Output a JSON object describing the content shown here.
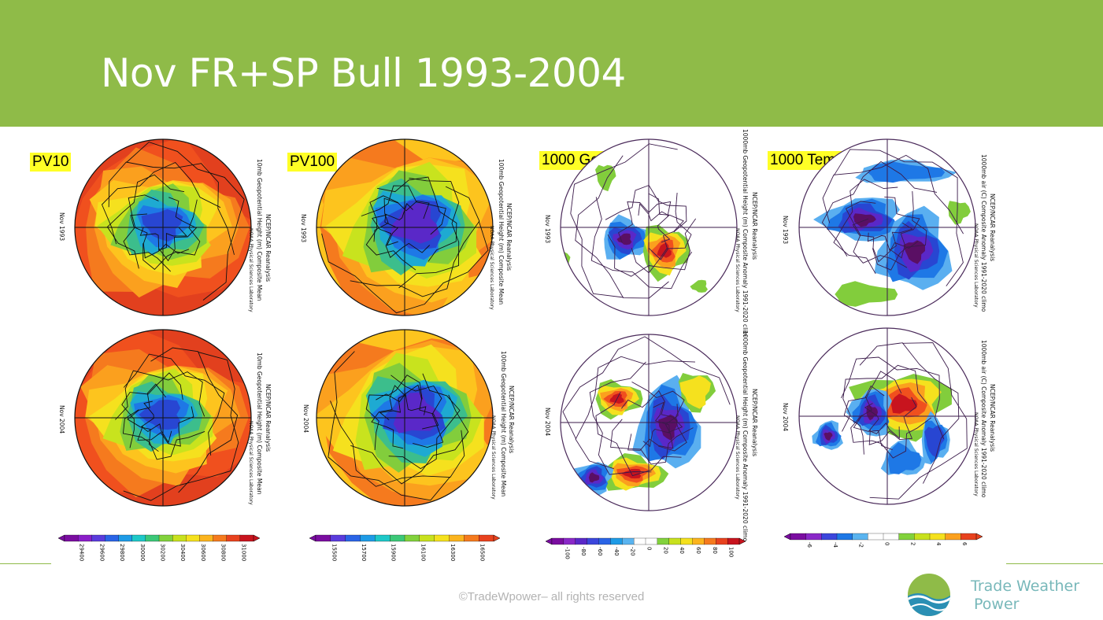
{
  "slide": {
    "title": "Nov FR+SP Bull 1993-2004",
    "colors": {
      "header": "#8fbb48",
      "label_bg": "#ffff26"
    }
  },
  "panels": [
    {
      "label": "PV10",
      "maps": [
        {
          "year": "Nov 1993",
          "source": "NCEP/NCAR Reanalysis",
          "desc": "10mb Geopotential Height (m) Composite Mean",
          "lab": "NOAA Physical Sciences Laboratory"
        },
        {
          "year": "Nov 2004",
          "source": "NCEP/NCAR Reanalysis",
          "desc": "10mb Geopotential Height (m) Composite Mean",
          "lab": "NOAA Physical Sciences Laboratory"
        }
      ],
      "colorbar_ticks": [
        "29400",
        "29600",
        "29800",
        "30000",
        "30200",
        "30400",
        "30600",
        "30800",
        "31000"
      ]
    },
    {
      "label": "PV100",
      "maps": [
        {
          "year": "Nov 1993",
          "source": "NCEP/NCAR Reanalysis",
          "desc": "100mb Geopotential Height (m) Composite Mean",
          "lab": "NOAA Physical Sciences Laboratory"
        },
        {
          "year": "Nov 2004",
          "source": "NCEP/NCAR Reanalysis",
          "desc": "100mb Geopotential Height (m) Composite Mean",
          "lab": "NOAA Physical Sciences Laboratory"
        }
      ],
      "colorbar_ticks": [
        "15500",
        "15700",
        "15900",
        "16100",
        "16300",
        "16500"
      ]
    },
    {
      "label": "1000 Geopot",
      "maps": [
        {
          "year": "Nov 1993",
          "source": "NCEP/NCAR Reanalysis",
          "desc": "1000mb Geopotential Height (m) Composite Anomaly 1991-2020 clim",
          "lab": "NOAA Physical Sciences Laboratory"
        },
        {
          "year": "Nov 2004",
          "source": "NCEP/NCAR Reanalysis",
          "desc": "1000mb Geopotential Height (m) Composite Anomaly 1991-2020 climo",
          "lab": "NOAA Physical Sciences Laboratory"
        }
      ],
      "colorbar_ticks": [
        "-100",
        "-80",
        "-60",
        "-40",
        "-20",
        "0",
        "20",
        "40",
        "60",
        "80",
        "100"
      ]
    },
    {
      "label": "1000 Temp",
      "maps": [
        {
          "year": "Nov 1993",
          "source": "NCEP/NCAR Reanalysis",
          "desc": "1000mb air (C) Composite Anomaly 1991-2020 climo",
          "lab": "NOAA Physical Sciences Laboratory"
        },
        {
          "year": "Nov 2004",
          "source": "NCEP/NCAR Reanalysis",
          "desc": "1000mb air (C) Composite Anomaly 1991-2020 climo",
          "lab": "NOAA Physical Sciences Laboratory"
        }
      ],
      "colorbar_ticks": [
        "-6",
        "-4",
        "-2",
        "0",
        "2",
        "4",
        "6"
      ]
    }
  ],
  "footer": {
    "copyright": "©TradeWpower– all rights reserved"
  },
  "brand": {
    "line1": "Trade Weather",
    "line2": "Power",
    "logo_icon": "wave-sun-logo-icon",
    "color": "#78b8ba"
  }
}
